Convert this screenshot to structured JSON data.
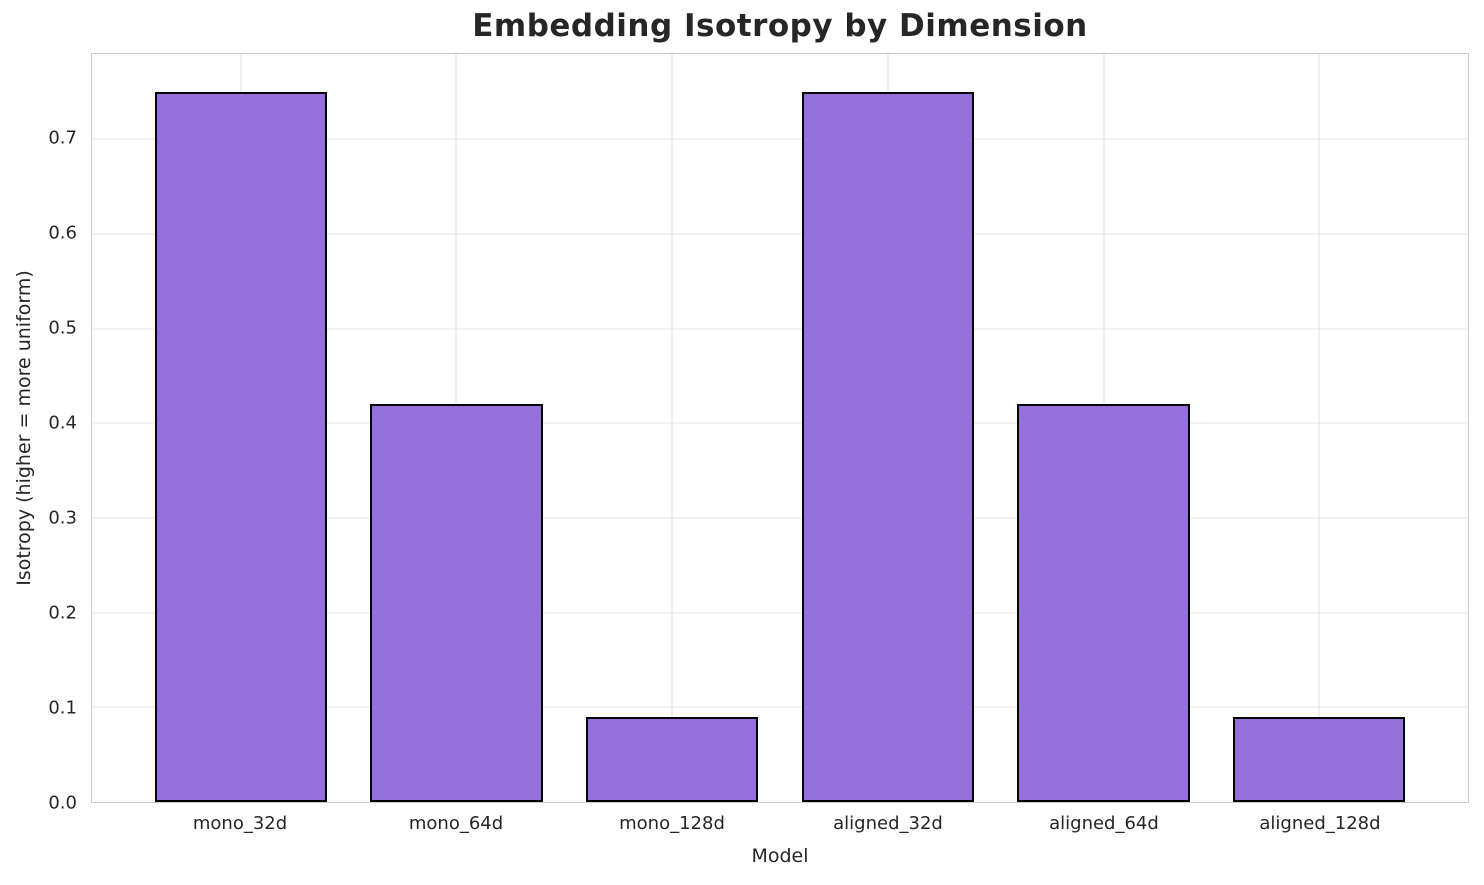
{
  "chart_data": {
    "type": "bar",
    "title": "Embedding Isotropy by Dimension",
    "xlabel": "Model",
    "ylabel": "Isotropy (higher = more uniform)",
    "categories": [
      "mono_32d",
      "mono_64d",
      "mono_128d",
      "aligned_32d",
      "aligned_64d",
      "aligned_128d"
    ],
    "values": [
      0.75,
      0.42,
      0.09,
      0.75,
      0.42,
      0.09
    ],
    "ylim": [
      0,
      0.79
    ],
    "yticks": [
      0.0,
      0.1,
      0.2,
      0.3,
      0.4,
      0.5,
      0.6,
      0.7
    ],
    "ytick_decimals": 1,
    "xlim": [
      -0.69,
      5.69
    ],
    "bar_width": 0.8,
    "grid": true,
    "legend": "none",
    "colors": {
      "bar_fill": "#9370DB",
      "bar_edge": "#000000",
      "grid_line": "#e7e7e7",
      "vgrid_line": "#dedede",
      "spine": "#c9c9c9",
      "text": "#262626",
      "background": "#ffffff"
    }
  }
}
